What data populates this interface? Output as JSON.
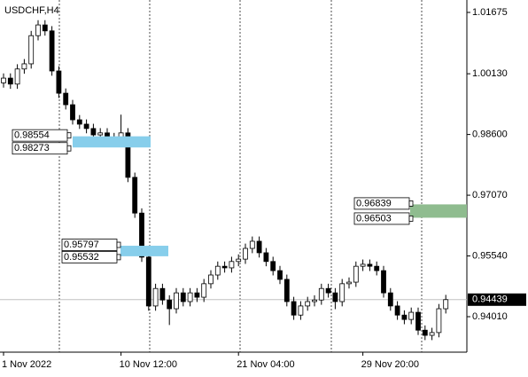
{
  "chart_data": {
    "type": "candlestick",
    "title": "USDCHF,H4",
    "categories": [
      "1 Nov 2022",
      null,
      null,
      null,
      null,
      null,
      null,
      null,
      null,
      null,
      null,
      null,
      null,
      null,
      null,
      null,
      null,
      "10 Nov 12:00",
      null,
      null,
      null,
      null,
      null,
      null,
      null,
      null,
      null,
      null,
      null,
      null,
      null,
      null,
      null,
      null,
      "21 Nov 04:00",
      null,
      null,
      null,
      null,
      null,
      null,
      null,
      null,
      null,
      null,
      null,
      null,
      null,
      null,
      null,
      null,
      null,
      "29 Nov 20:00",
      null,
      null,
      null,
      null,
      null,
      null,
      null,
      null,
      null,
      null,
      null,
      null
    ],
    "open": [
      0.999,
      1.0002,
      0.9987,
      1.0025,
      1.0038,
      1.0109,
      1.0136,
      1.0121,
      1.002,
      0.9964,
      0.9935,
      0.9897,
      0.9886,
      0.9875,
      0.9859,
      0.9864,
      0.9848,
      0.9852,
      0.9864,
      0.9752,
      0.9662,
      0.9551,
      0.9428,
      0.9472,
      0.9443,
      0.9421,
      0.9461,
      0.9439,
      0.9461,
      0.945,
      0.9484,
      0.9506,
      0.9528,
      0.9524,
      0.954,
      0.9546,
      0.9573,
      0.9591,
      0.9562,
      0.954,
      0.9517,
      0.9495,
      0.9439,
      0.9405,
      0.9428,
      0.9439,
      0.9443,
      0.9472,
      0.9461,
      0.9439,
      0.9484,
      0.9488,
      0.9528,
      0.9533,
      0.9528,
      0.9517,
      0.9461,
      0.9428,
      0.9405,
      0.9394,
      0.9412,
      0.9367,
      0.9354,
      0.9361,
      0.9421
    ],
    "high": [
      1.0014,
      1.0014,
      1.0037,
      1.005,
      1.0121,
      1.0148,
      1.0148,
      1.0133,
      1.0032,
      0.9976,
      0.9947,
      0.9909,
      0.9898,
      0.9887,
      0.9876,
      0.9876,
      0.9864,
      0.991,
      0.9876,
      0.9764,
      0.9674,
      0.9563,
      0.9484,
      0.9484,
      0.9455,
      0.9473,
      0.9473,
      0.9473,
      0.9473,
      0.9496,
      0.9518,
      0.954,
      0.954,
      0.9552,
      0.9558,
      0.9585,
      0.9603,
      0.9603,
      0.9574,
      0.9552,
      0.9529,
      0.9507,
      0.9451,
      0.944,
      0.9451,
      0.9455,
      0.9484,
      0.9484,
      0.9473,
      0.9496,
      0.95,
      0.954,
      0.9545,
      0.9545,
      0.954,
      0.9529,
      0.9473,
      0.944,
      0.9417,
      0.9424,
      0.9424,
      0.9379,
      0.9373,
      0.9433,
      0.9456
    ],
    "low": [
      0.9978,
      0.9975,
      0.9975,
      1.0013,
      1.0026,
      1.0097,
      1.0109,
      1.0008,
      0.9952,
      0.9923,
      0.9885,
      0.9874,
      0.9863,
      0.9847,
      0.9847,
      0.9836,
      0.9836,
      0.984,
      0.974,
      0.965,
      0.9539,
      0.9416,
      0.9416,
      0.9431,
      0.938,
      0.9409,
      0.9427,
      0.9427,
      0.9438,
      0.9438,
      0.9472,
      0.9494,
      0.9512,
      0.9512,
      0.9528,
      0.9534,
      0.9561,
      0.955,
      0.9528,
      0.9505,
      0.9483,
      0.9427,
      0.9393,
      0.9393,
      0.9416,
      0.9427,
      0.9431,
      0.9449,
      0.942,
      0.9427,
      0.9472,
      0.9476,
      0.9516,
      0.9516,
      0.9505,
      0.9449,
      0.9416,
      0.9393,
      0.9382,
      0.9382,
      0.9355,
      0.9342,
      0.9342,
      0.9349,
      0.9409
    ],
    "close": [
      1.0002,
      0.9987,
      1.0025,
      1.0038,
      1.0109,
      1.0136,
      1.0121,
      1.002,
      0.9964,
      0.9935,
      0.9897,
      0.9886,
      0.9875,
      0.9859,
      0.9864,
      0.9848,
      0.9852,
      0.9864,
      0.9752,
      0.9662,
      0.9551,
      0.9428,
      0.9472,
      0.9443,
      0.9421,
      0.9461,
      0.9439,
      0.9461,
      0.945,
      0.9484,
      0.9506,
      0.9528,
      0.9524,
      0.954,
      0.9546,
      0.9573,
      0.9591,
      0.9562,
      0.954,
      0.9517,
      0.9495,
      0.9439,
      0.9405,
      0.9428,
      0.9439,
      0.9443,
      0.9472,
      0.9461,
      0.9439,
      0.9484,
      0.9488,
      0.9528,
      0.9533,
      0.9528,
      0.9517,
      0.9461,
      0.9428,
      0.9405,
      0.9394,
      0.9412,
      0.9367,
      0.9354,
      0.9361,
      0.9421,
      0.94439
    ],
    "ylim": [
      0.93116,
      1.01988
    ],
    "yticks": [
      1.01675,
      {
        "value": 1.0013,
        "label": "1.00130"
      },
      {
        "value": 0.986,
        "label": "0.98600"
      },
      {
        "value": 0.9707,
        "label": "0.97070"
      },
      {
        "value": 0.9554,
        "label": "0.95540"
      },
      {
        "value": 0.9401,
        "label": "0.94010"
      }
    ],
    "last_price": 0.94439,
    "levels": [
      {
        "upper": 0.98554,
        "lower": 0.98273,
        "color": "#87ceeb"
      },
      {
        "upper": 0.95797,
        "lower": 0.95532,
        "color": "#87ceeb"
      },
      {
        "upper": 0.96839,
        "lower": 0.96503,
        "color": "#8fbc8f"
      }
    ],
    "bull_color": "#ffffff",
    "bear_color": "#000000"
  }
}
